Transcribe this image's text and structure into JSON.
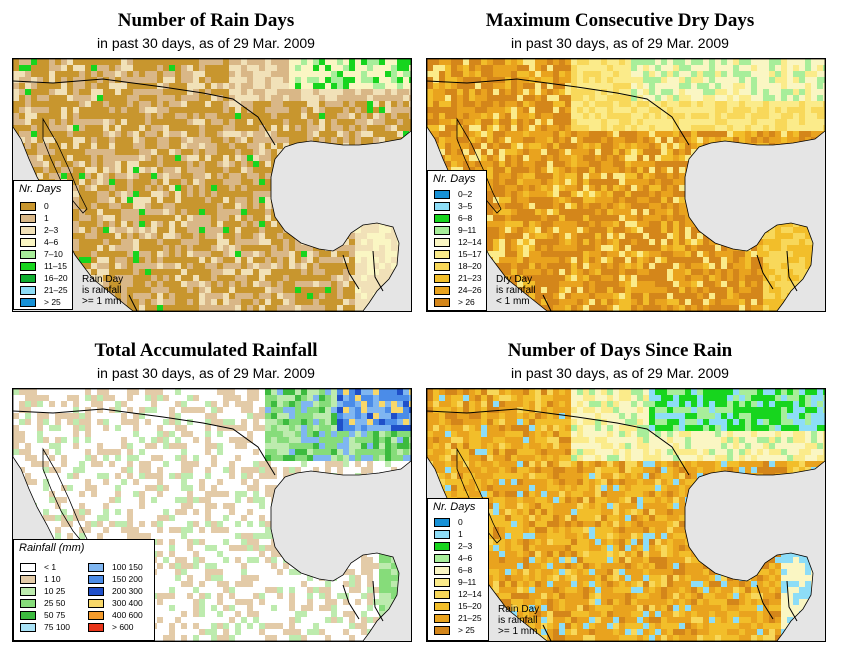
{
  "panels": [
    {
      "title": "Number of Rain Days",
      "subtitle": "in past 30 days, as of  29 Mar. 2009",
      "legend_title": "Nr. Days",
      "legend_items": [
        {
          "label": "0",
          "color": "#C8962E"
        },
        {
          "label": "1",
          "color": "#D9B787"
        },
        {
          "label": "2–3",
          "color": "#F1E1B8"
        },
        {
          "label": "4–6",
          "color": "#FAF6C3"
        },
        {
          "label": "7–10",
          "color": "#A8EE9A"
        },
        {
          "label": "11–15",
          "color": "#17D51E"
        },
        {
          "label": "16–20",
          "color": "#0FAE30"
        },
        {
          "label": "21–25",
          "color": "#8DDDF7"
        },
        {
          "label": "> 25",
          "color": "#1791D6"
        }
      ],
      "note": "Rain Day\nis rainfall\n>= 1 mm"
    },
    {
      "title": "Maximum Consecutive Dry Days",
      "subtitle": "in past 30 days, as of  29 Mar. 2009",
      "legend_title": "Nr. Days",
      "legend_items": [
        {
          "label": "0–2",
          "color": "#1791D6"
        },
        {
          "label": "3–5",
          "color": "#8DDDF7"
        },
        {
          "label": "6–8",
          "color": "#17D51E"
        },
        {
          "label": "9–11",
          "color": "#A8EE9A"
        },
        {
          "label": "12–14",
          "color": "#FAF6C3"
        },
        {
          "label": "15–17",
          "color": "#FBEB8A"
        },
        {
          "label": "18–20",
          "color": "#F8D85A"
        },
        {
          "label": "21–23",
          "color": "#F2BE2A"
        },
        {
          "label": "24–26",
          "color": "#E9A31E"
        },
        {
          "label": "> 26",
          "color": "#D4861A"
        }
      ],
      "note": "Dry Day\nis rainfall\n< 1 mm"
    },
    {
      "title": "Total Accumulated Rainfall",
      "subtitle": "in past 30 days, as of  29 Mar. 2009",
      "legend_title": "Rainfall (mm)",
      "legend_items": [
        {
          "label": "< 1",
          "color": "#FFFFFF"
        },
        {
          "label": "1    10",
          "color": "#E3CBA8"
        },
        {
          "label": "10    25",
          "color": "#BDEBAE"
        },
        {
          "label": "25    50",
          "color": "#86DC7A"
        },
        {
          "label": "50    75",
          "color": "#3CBB3F"
        },
        {
          "label": "75   100",
          "color": "#A9E2F6"
        },
        {
          "label": "100   150",
          "color": "#7FB6F1"
        },
        {
          "label": "150   200",
          "color": "#4B8CE8"
        },
        {
          "label": "200   300",
          "color": "#1F4FC9"
        },
        {
          "label": "300   400",
          "color": "#F8D86A"
        },
        {
          "label": "400   600",
          "color": "#F39A2B"
        },
        {
          "label": "> 600",
          "color": "#E8351A"
        }
      ],
      "note": ""
    },
    {
      "title": "Number of Days Since Rain",
      "subtitle": "in past 30 days, as of  29 Mar. 2009",
      "legend_title": "Nr. Days",
      "legend_items": [
        {
          "label": "0",
          "color": "#1791D6"
        },
        {
          "label": "1",
          "color": "#8DDDF7"
        },
        {
          "label": "2–3",
          "color": "#17D51E"
        },
        {
          "label": "4–6",
          "color": "#A8EE9A"
        },
        {
          "label": "6–8",
          "color": "#FAF6C3"
        },
        {
          "label": "9–11",
          "color": "#FBEB8A"
        },
        {
          "label": "12–14",
          "color": "#F8D85A"
        },
        {
          "label": "15–20",
          "color": "#F2BE2A"
        },
        {
          "label": "21–25",
          "color": "#E9A31E"
        },
        {
          "label": "> 25",
          "color": "#D4861A"
        }
      ],
      "note": "Rain Day\nis rainfall\n>= 1 mm"
    }
  ]
}
